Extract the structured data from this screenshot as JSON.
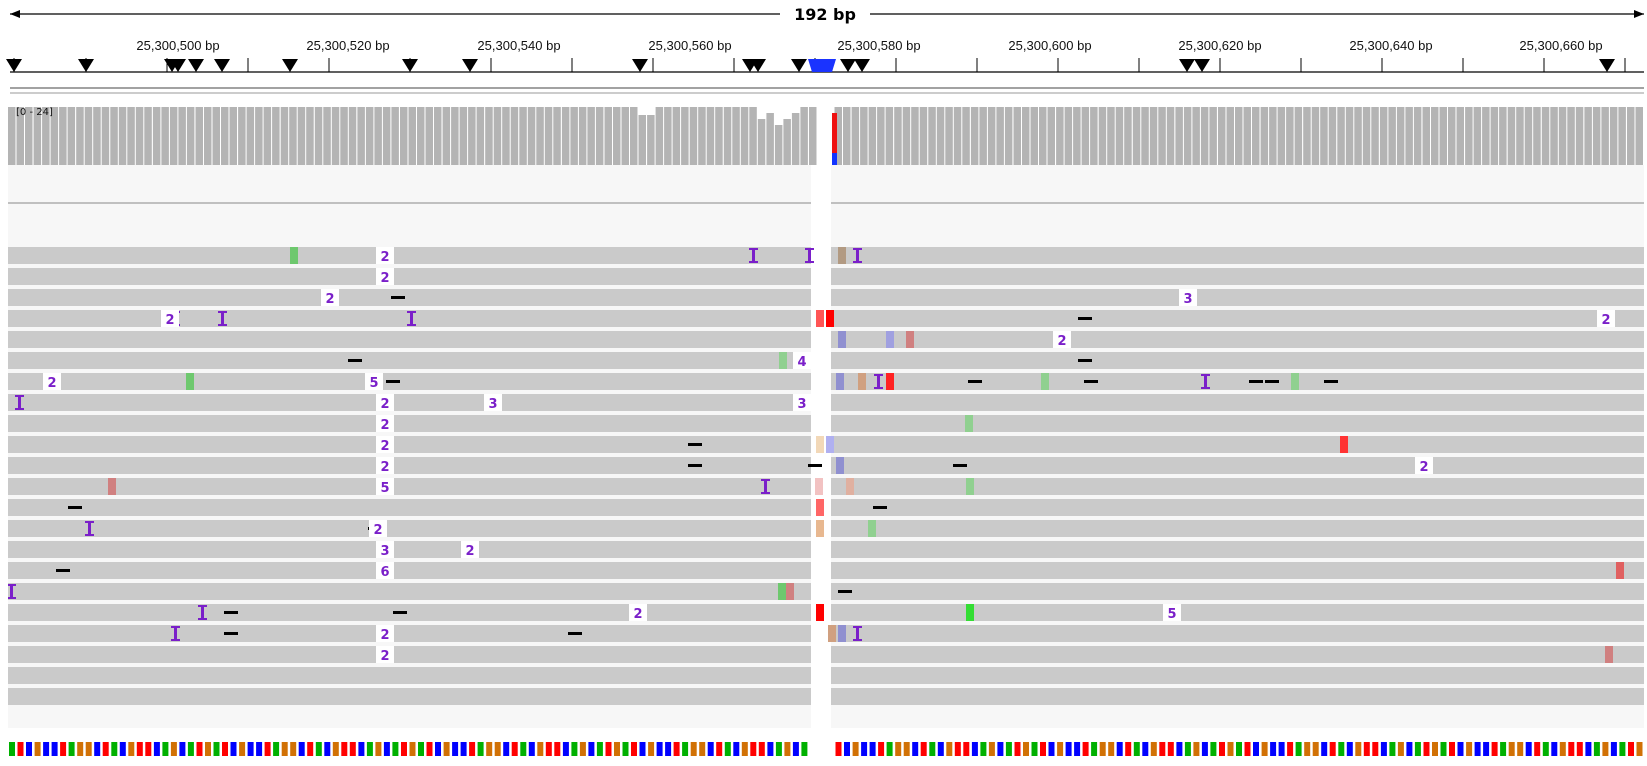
{
  "ruler": {
    "span_label": "192 bp",
    "ticks": [
      "25,300,500 bp",
      "25,300,520 bp",
      "25,300,540 bp",
      "25,300,560 bp",
      "25,300,580 bp",
      "25,300,600 bp",
      "25,300,620 bp",
      "25,300,640 bp",
      "25,300,660 bp"
    ]
  },
  "coverage": {
    "range_label": "[0 - 24]"
  },
  "alignments": {
    "insertion_labels": [
      "2",
      "2",
      "2",
      "3",
      "2",
      "2",
      "4",
      "2",
      "5",
      "3",
      "2",
      "3",
      "2",
      "2",
      "2",
      "2",
      "5",
      "2",
      "3",
      "2",
      "6",
      "2",
      "2",
      "2",
      "5",
      "2"
    ]
  },
  "colors": {
    "read_gray": "#cacaca",
    "coverage_gray": "#b4b4b4",
    "insertion_purple": "#7a1fc9",
    "base_A": "#00b000",
    "base_C": "#0000ff",
    "base_G": "#d17105",
    "base_T": "#ff0000"
  }
}
